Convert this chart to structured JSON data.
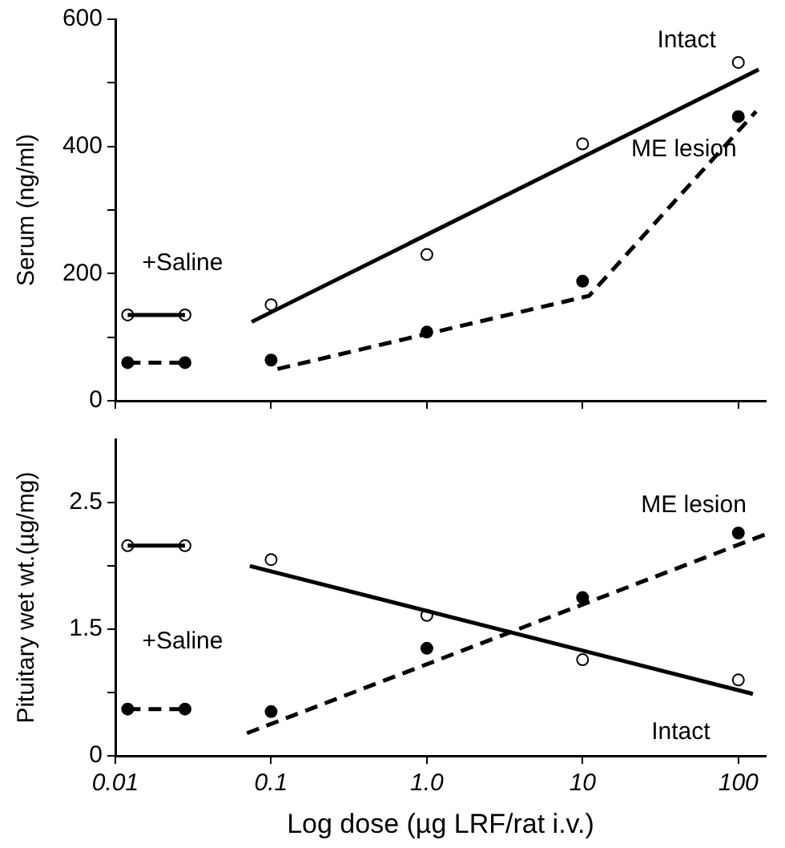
{
  "chart_data": [
    {
      "type": "line",
      "ylabel": "Serum (ng/ml)",
      "log": "x",
      "xlim": [
        0.01,
        150
      ],
      "xticks": [
        {
          "value": 0.01,
          "label": null
        },
        {
          "value": 0.1,
          "label": null
        },
        {
          "value": 1,
          "label": null
        },
        {
          "value": 10,
          "label": null
        },
        {
          "value": 100,
          "label": null
        }
      ],
      "ylim": [
        0,
        600
      ],
      "yticks": [
        0,
        {
          "value": 100,
          "label": null
        },
        200,
        {
          "value": 300,
          "label": null
        },
        400,
        {
          "value": 500,
          "label": null
        },
        600
      ],
      "tick_labels": "y",
      "grid": false,
      "legend": false,
      "series": [
        {
          "type": "line",
          "name": "Intact",
          "color": "#000000",
          "line_style": "solid",
          "marker": "none",
          "x": [
            0.075,
            135
          ],
          "values": [
            124,
            521
          ]
        },
        {
          "type": "line",
          "name": "ME lesion",
          "color": "#000000",
          "line_style": "dashed",
          "marker": "none",
          "x": [
            0.11,
            11,
            130
          ],
          "values": [
            50,
            165,
            455
          ]
        },
        {
          "type": "scatter",
          "color": "#ffffff",
          "marker": "circle",
          "x": [
            0.1,
            1,
            10,
            100
          ],
          "values": [
            151,
            230,
            404,
            532
          ]
        },
        {
          "type": "scatter",
          "color": "#000000",
          "marker": "circle",
          "x": [
            0.1,
            1,
            10,
            100
          ],
          "values": [
            64,
            108,
            188,
            447
          ]
        },
        {
          "type": "line",
          "color": "#000000",
          "line_style": "solid",
          "marker": "none",
          "x": [
            0.012,
            0.028
          ],
          "values": [
            135,
            135
          ]
        },
        {
          "type": "line",
          "color": "#000000",
          "line_style": "dashed",
          "marker": "none",
          "x": [
            0.012,
            0.028
          ],
          "values": [
            60,
            60
          ]
        },
        {
          "type": "scatter",
          "color": "#ffffff",
          "marker": "circle",
          "x": [
            0.012,
            0.028
          ],
          "values": [
            135,
            135
          ]
        },
        {
          "type": "scatter",
          "color": "#000000",
          "marker": "circle",
          "x": [
            0.012,
            0.028
          ],
          "values": [
            60,
            60
          ]
        }
      ],
      "annotations": [
        "+Saline"
      ]
    },
    {
      "type": "line",
      "ylabel": "Pituitary wet wt.(µg/mg)",
      "xlabel": "Log dose (µg LRF/rat i.v.)",
      "log": "x",
      "xlim": [
        0.01,
        150
      ],
      "xticks": [
        {
          "value": 0.01,
          "label": "0.01"
        },
        {
          "value": 0.1,
          "label": "0.1"
        },
        {
          "value": 1,
          "label": "1.0"
        },
        {
          "value": 10,
          "label": "10"
        },
        {
          "value": 100,
          "label": "100"
        }
      ],
      "ylim": [
        0.5,
        3.0
      ],
      "yticks": [
        {
          "value": 0.5,
          "label": "0"
        },
        {
          "value": 1.0,
          "label": null
        },
        1.5,
        {
          "value": 2.0,
          "label": null
        },
        2.5
      ],
      "grid": false,
      "legend": false,
      "series": [
        {
          "type": "line",
          "name": "Intact",
          "color": "#000000",
          "line_style": "solid",
          "marker": "none",
          "x": [
            0.073,
            124
          ],
          "values": [
            2.0,
            0.99
          ]
        },
        {
          "type": "line",
          "name": "ME lesion",
          "color": "#000000",
          "line_style": "dashed",
          "marker": "none",
          "x": [
            0.07,
            150
          ],
          "values": [
            0.68,
            2.25
          ]
        },
        {
          "type": "scatter",
          "color": "#ffffff",
          "marker": "circle",
          "x": [
            0.1,
            1,
            10,
            100
          ],
          "values": [
            2.05,
            1.61,
            1.26,
            1.1
          ]
        },
        {
          "type": "scatter",
          "color": "#000000",
          "marker": "circle",
          "x": [
            0.1,
            1,
            10,
            100
          ],
          "values": [
            0.85,
            1.35,
            1.75,
            2.26
          ]
        },
        {
          "type": "line",
          "color": "#000000",
          "line_style": "solid",
          "marker": "none",
          "x": [
            0.012,
            0.028
          ],
          "values": [
            2.16,
            2.16
          ]
        },
        {
          "type": "line",
          "color": "#000000",
          "line_style": "dashed",
          "marker": "none",
          "x": [
            0.012,
            0.028
          ],
          "values": [
            0.87,
            0.87
          ]
        },
        {
          "type": "scatter",
          "color": "#ffffff",
          "marker": "circle",
          "x": [
            0.012,
            0.028
          ],
          "values": [
            2.16,
            2.16
          ]
        },
        {
          "type": "scatter",
          "color": "#000000",
          "marker": "circle",
          "x": [
            0.012,
            0.028
          ],
          "values": [
            0.87,
            0.87
          ]
        }
      ],
      "annotations": [
        "+Saline"
      ]
    }
  ]
}
